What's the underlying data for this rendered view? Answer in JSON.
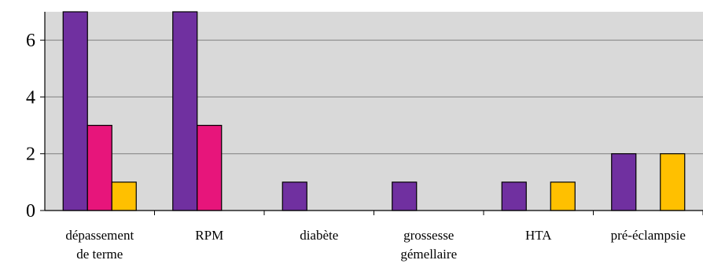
{
  "chart_data": {
    "type": "bar",
    "categories": [
      [
        "dépassement",
        "de terme"
      ],
      [
        "RPM"
      ],
      [
        "diabète"
      ],
      [
        "grossesse",
        "gémellaire"
      ],
      [
        "HTA"
      ],
      [
        "pré-éclampsie"
      ]
    ],
    "series": [
      {
        "values": [
          7,
          7,
          1,
          1,
          1,
          2
        ],
        "color": "#7030A0"
      },
      {
        "values": [
          3,
          3,
          0,
          0,
          0,
          0
        ],
        "color": "#E7157B"
      },
      {
        "values": [
          1,
          0,
          0,
          0,
          1,
          2
        ],
        "color": "#FFC000"
      }
    ],
    "ylim": [
      0,
      7
    ],
    "yticks": [
      0,
      2,
      4,
      6
    ],
    "grid": true,
    "plot_background": "#D9D9D9"
  }
}
